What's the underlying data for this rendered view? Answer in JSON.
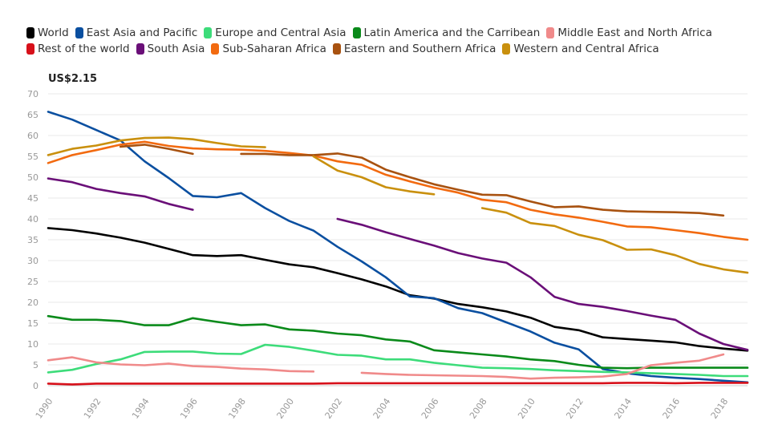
{
  "chart_data": {
    "type": "line",
    "title": "",
    "ylabel": "US$2.15",
    "xlabel": "",
    "xlim": [
      1990,
      2019
    ],
    "ylim": [
      0,
      70
    ],
    "yticks": [
      0,
      5,
      10,
      15,
      20,
      25,
      30,
      35,
      40,
      45,
      50,
      55,
      60,
      65,
      70
    ],
    "xticks": [
      1990,
      1992,
      1994,
      1996,
      1998,
      2000,
      2002,
      2004,
      2006,
      2008,
      2010,
      2012,
      2014,
      2016,
      2018
    ],
    "grid": "horizontal",
    "legend_placement": "top",
    "x": [
      1990,
      1991,
      1992,
      1993,
      1994,
      1995,
      1996,
      1997,
      1998,
      1999,
      2000,
      2001,
      2002,
      2003,
      2004,
      2005,
      2006,
      2007,
      2008,
      2009,
      2010,
      2011,
      2012,
      2013,
      2014,
      2015,
      2016,
      2017,
      2018,
      2019
    ],
    "series": [
      {
        "name": "World",
        "color": "#000000",
        "values": [
          37.8,
          37.3,
          36.5,
          35.5,
          34.3,
          32.8,
          31.3,
          31.1,
          31.3,
          30.2,
          29.1,
          28.4,
          27.0,
          25.5,
          23.8,
          21.7,
          20.9,
          19.6,
          18.8,
          17.8,
          16.3,
          14.1,
          13.3,
          11.6,
          11.2,
          10.8,
          10.4,
          9.5,
          8.9,
          8.4
        ]
      },
      {
        "name": "East Asia and Pacific",
        "color": "#0a4fa0",
        "values": [
          65.7,
          63.8,
          61.3,
          58.8,
          53.8,
          49.8,
          45.5,
          45.2,
          46.2,
          42.6,
          39.5,
          37.2,
          33.3,
          29.8,
          26.0,
          21.4,
          21.0,
          18.6,
          17.4,
          15.2,
          13.0,
          10.3,
          8.7,
          4.0,
          3.0,
          2.3,
          1.9,
          1.6,
          1.2,
          0.8
        ]
      },
      {
        "name": "Europe and Central Asia",
        "color": "#3ddc7a",
        "values": [
          3.2,
          3.8,
          5.2,
          6.3,
          8.1,
          8.2,
          8.2,
          7.7,
          7.6,
          9.8,
          9.3,
          8.4,
          7.4,
          7.2,
          6.3,
          6.3,
          5.5,
          4.9,
          4.3,
          4.2,
          4.0,
          3.7,
          3.5,
          3.3,
          3.2,
          3.0,
          2.8,
          2.6,
          2.3,
          2.3
        ]
      },
      {
        "name": "Latin America and the Carribean",
        "color": "#0a8a1a",
        "values": [
          16.7,
          15.8,
          15.8,
          15.5,
          14.5,
          14.5,
          16.2,
          15.3,
          14.5,
          14.7,
          13.5,
          13.2,
          12.5,
          12.1,
          11.1,
          10.6,
          8.5,
          8.0,
          7.5,
          7.0,
          6.3,
          5.9,
          5.0,
          4.3,
          4.2,
          4.3,
          4.3,
          4.3,
          4.3,
          4.3
        ]
      },
      {
        "name": "Middle East and North Africa",
        "color": "#f08a8a",
        "values": [
          6.1,
          6.8,
          5.6,
          5.1,
          4.9,
          5.3,
          4.7,
          4.5,
          4.1,
          3.9,
          3.5,
          3.4,
          null,
          3.1,
          2.8,
          2.6,
          2.5,
          2.4,
          2.3,
          2.1,
          1.7,
          1.9,
          2.0,
          2.2,
          2.8,
          4.9,
          5.5,
          6.0,
          7.5,
          null
        ]
      },
      {
        "name": "Rest of the world",
        "color": "#d7101a",
        "values": [
          0.5,
          0.3,
          0.5,
          0.5,
          0.5,
          0.5,
          0.5,
          0.5,
          0.5,
          0.5,
          0.5,
          0.5,
          0.6,
          0.6,
          0.6,
          0.6,
          0.6,
          0.6,
          0.6,
          0.6,
          0.6,
          0.6,
          0.6,
          0.6,
          0.7,
          0.7,
          0.6,
          0.7,
          0.7,
          0.7
        ]
      },
      {
        "name": "South Asia",
        "color": "#6a0f78",
        "values": [
          49.7,
          48.8,
          47.2,
          46.2,
          45.4,
          43.6,
          42.2,
          null,
          null,
          null,
          null,
          null,
          40.0,
          38.6,
          36.8,
          35.2,
          33.6,
          31.8,
          30.5,
          29.5,
          26.0,
          21.3,
          19.6,
          18.9,
          17.9,
          16.8,
          15.8,
          12.5,
          10.0,
          8.6
        ]
      },
      {
        "name": "Sub-Saharan Africa",
        "color": "#f26a10",
        "values": [
          53.4,
          55.3,
          56.5,
          57.8,
          58.5,
          57.5,
          56.9,
          56.7,
          56.6,
          56.3,
          55.8,
          55.2,
          53.8,
          53.0,
          50.6,
          49.0,
          47.5,
          46.3,
          44.6,
          44.0,
          42.2,
          41.1,
          40.3,
          39.3,
          38.2,
          38.0,
          37.3,
          36.6,
          35.7,
          35.0
        ]
      },
      {
        "name": "Eastern and Southern Africa",
        "color": "#a85210",
        "values": [
          null,
          null,
          null,
          57.3,
          57.8,
          56.8,
          55.6,
          null,
          55.6,
          55.6,
          55.3,
          55.3,
          55.7,
          54.7,
          51.8,
          50.0,
          48.3,
          47.0,
          45.8,
          45.7,
          44.2,
          42.8,
          43.0,
          42.2,
          41.8,
          41.7,
          41.6,
          41.4,
          40.8,
          null
        ]
      },
      {
        "name": "Western and Central Africa",
        "color": "#c9900e",
        "values": [
          55.3,
          56.8,
          57.6,
          58.8,
          59.4,
          59.5,
          59.1,
          58.2,
          57.4,
          57.2,
          null,
          55.0,
          51.6,
          50.0,
          47.6,
          46.6,
          45.9,
          null,
          42.6,
          41.5,
          39.0,
          38.3,
          36.2,
          34.9,
          32.6,
          32.7,
          31.3,
          29.2,
          27.9,
          27.1
        ]
      }
    ]
  }
}
